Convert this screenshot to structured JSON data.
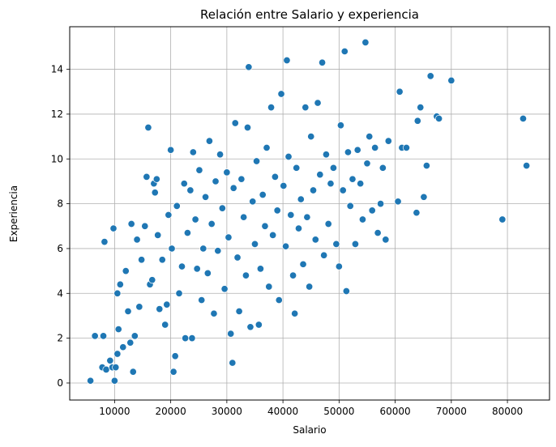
{
  "chart_data": {
    "type": "scatter",
    "title": "Relación entre Salario y experiencia",
    "xlabel": "Salario",
    "ylabel": "Experiencia",
    "xlim": [
      2000,
      87500
    ],
    "ylim": [
      -0.76,
      15.9
    ],
    "xticks": [
      10000,
      20000,
      30000,
      40000,
      50000,
      60000,
      70000,
      80000
    ],
    "xtick_labels": [
      "10000",
      "20000",
      "30000",
      "40000",
      "50000",
      "60000",
      "70000",
      "80000"
    ],
    "yticks": [
      0,
      2,
      4,
      6,
      8,
      10,
      12,
      14
    ],
    "ytick_labels": [
      "0",
      "2",
      "4",
      "6",
      "8",
      "10",
      "12",
      "14"
    ],
    "grid": true,
    "marker_color": "#1f77b4",
    "marker_edge_color": "#ffffff",
    "series": [
      {
        "points": [
          [
            5700,
            0.1
          ],
          [
            6500,
            2.1
          ],
          [
            8000,
            2.1
          ],
          [
            8200,
            6.3
          ],
          [
            7800,
            0.7
          ],
          [
            8500,
            0.6
          ],
          [
            9200,
            1.0
          ],
          [
            9600,
            0.7
          ],
          [
            9800,
            6.9
          ],
          [
            10000,
            0.1
          ],
          [
            10200,
            0.7
          ],
          [
            10500,
            1.3
          ],
          [
            10500,
            4.0
          ],
          [
            10700,
            2.4
          ],
          [
            11000,
            4.4
          ],
          [
            11500,
            1.6
          ],
          [
            12000,
            5.0
          ],
          [
            12400,
            3.2
          ],
          [
            12800,
            1.8
          ],
          [
            13000,
            7.1
          ],
          [
            13300,
            0.5
          ],
          [
            13600,
            2.1
          ],
          [
            14000,
            6.4
          ],
          [
            14400,
            3.4
          ],
          [
            14800,
            5.5
          ],
          [
            15400,
            7.0
          ],
          [
            15700,
            9.2
          ],
          [
            16000,
            11.4
          ],
          [
            16300,
            4.4
          ],
          [
            16700,
            4.6
          ],
          [
            17000,
            8.9
          ],
          [
            17200,
            8.5
          ],
          [
            17500,
            9.1
          ],
          [
            17700,
            6.6
          ],
          [
            18000,
            3.3
          ],
          [
            18500,
            5.5
          ],
          [
            19000,
            2.6
          ],
          [
            19300,
            3.5
          ],
          [
            19600,
            7.5
          ],
          [
            20000,
            10.4
          ],
          [
            20200,
            6.0
          ],
          [
            20500,
            0.5
          ],
          [
            20800,
            1.2
          ],
          [
            21100,
            7.9
          ],
          [
            21500,
            4.0
          ],
          [
            22000,
            5.2
          ],
          [
            22400,
            8.9
          ],
          [
            22600,
            2.0
          ],
          [
            23000,
            6.7
          ],
          [
            23500,
            8.6
          ],
          [
            23800,
            2.0
          ],
          [
            24000,
            10.3
          ],
          [
            24400,
            7.3
          ],
          [
            24700,
            5.1
          ],
          [
            25100,
            9.5
          ],
          [
            25500,
            3.7
          ],
          [
            25800,
            6.0
          ],
          [
            26200,
            8.3
          ],
          [
            26600,
            4.9
          ],
          [
            26900,
            10.8
          ],
          [
            27300,
            7.1
          ],
          [
            27700,
            3.1
          ],
          [
            28000,
            9.0
          ],
          [
            28400,
            5.9
          ],
          [
            28800,
            10.2
          ],
          [
            29200,
            7.8
          ],
          [
            29600,
            4.2
          ],
          [
            30000,
            9.4
          ],
          [
            30300,
            6.5
          ],
          [
            30700,
            2.2
          ],
          [
            31000,
            0.9
          ],
          [
            31200,
            8.7
          ],
          [
            31500,
            11.6
          ],
          [
            31900,
            5.6
          ],
          [
            32200,
            3.2
          ],
          [
            32600,
            9.1
          ],
          [
            33000,
            7.4
          ],
          [
            33400,
            4.8
          ],
          [
            33700,
            11.4
          ],
          [
            33900,
            14.1
          ],
          [
            34200,
            2.5
          ],
          [
            34600,
            8.1
          ],
          [
            35000,
            6.2
          ],
          [
            35300,
            9.9
          ],
          [
            35700,
            2.6
          ],
          [
            36000,
            5.1
          ],
          [
            36400,
            8.4
          ],
          [
            36800,
            7.0
          ],
          [
            37100,
            10.5
          ],
          [
            37500,
            4.3
          ],
          [
            37900,
            12.3
          ],
          [
            38200,
            6.6
          ],
          [
            38600,
            9.2
          ],
          [
            39000,
            7.7
          ],
          [
            39300,
            3.7
          ],
          [
            39700,
            12.9
          ],
          [
            40100,
            8.8
          ],
          [
            40500,
            6.1
          ],
          [
            40700,
            14.4
          ],
          [
            41000,
            10.1
          ],
          [
            41400,
            7.5
          ],
          [
            41800,
            4.8
          ],
          [
            42100,
            3.1
          ],
          [
            42400,
            9.6
          ],
          [
            42800,
            6.9
          ],
          [
            43200,
            8.2
          ],
          [
            43600,
            5.3
          ],
          [
            44000,
            12.3
          ],
          [
            44300,
            7.4
          ],
          [
            44700,
            4.3
          ],
          [
            45000,
            11.0
          ],
          [
            45400,
            8.6
          ],
          [
            45800,
            6.4
          ],
          [
            46200,
            12.5
          ],
          [
            46600,
            9.3
          ],
          [
            47000,
            14.3
          ],
          [
            47300,
            5.7
          ],
          [
            47700,
            10.2
          ],
          [
            48100,
            7.1
          ],
          [
            48500,
            8.9
          ],
          [
            49000,
            9.6
          ],
          [
            49500,
            6.2
          ],
          [
            50000,
            5.2
          ],
          [
            50300,
            11.5
          ],
          [
            50700,
            8.6
          ],
          [
            51000,
            14.8
          ],
          [
            51300,
            4.1
          ],
          [
            51600,
            10.3
          ],
          [
            52000,
            7.9
          ],
          [
            52400,
            9.1
          ],
          [
            52900,
            6.2
          ],
          [
            53300,
            10.4
          ],
          [
            53800,
            8.9
          ],
          [
            54200,
            7.3
          ],
          [
            54700,
            15.2
          ],
          [
            55000,
            9.8
          ],
          [
            55400,
            11.0
          ],
          [
            55900,
            7.7
          ],
          [
            56400,
            10.5
          ],
          [
            56900,
            6.7
          ],
          [
            57400,
            8.0
          ],
          [
            57800,
            9.6
          ],
          [
            58300,
            6.4
          ],
          [
            58800,
            10.8
          ],
          [
            60500,
            8.1
          ],
          [
            60800,
            13.0
          ],
          [
            61200,
            10.5
          ],
          [
            62000,
            10.5
          ],
          [
            63800,
            7.6
          ],
          [
            64000,
            11.7
          ],
          [
            64500,
            12.3
          ],
          [
            65100,
            8.3
          ],
          [
            65600,
            9.7
          ],
          [
            66300,
            13.7
          ],
          [
            67400,
            11.9
          ],
          [
            67800,
            11.8
          ],
          [
            70000,
            13.5
          ],
          [
            79100,
            7.3
          ],
          [
            82800,
            11.8
          ],
          [
            83400,
            9.7
          ]
        ]
      }
    ]
  }
}
